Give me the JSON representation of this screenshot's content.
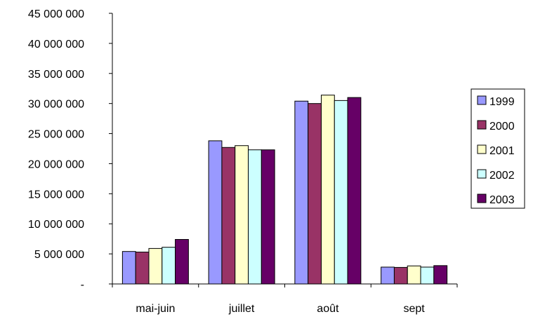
{
  "chart_data": {
    "type": "bar",
    "title": "",
    "xlabel": "",
    "ylabel": "",
    "categories": [
      "mai-juin",
      "juillet",
      "août",
      "sept"
    ],
    "ylim": [
      0,
      45000000
    ],
    "y_tick_values": [
      0,
      5000000,
      10000000,
      15000000,
      20000000,
      25000000,
      30000000,
      35000000,
      40000000,
      45000000
    ],
    "y_tick_labels": [
      "-",
      "5 000 000",
      "10 000 000",
      "15 000 000",
      "20 000 000",
      "25 000 000",
      "30 000 000",
      "35 000 000",
      "40 000 000",
      "45 000 000"
    ],
    "grid": false,
    "legend_position": "right",
    "series": [
      {
        "name": "1999",
        "color": "#9999ff",
        "values": [
          5400000,
          23800000,
          30400000,
          2800000
        ]
      },
      {
        "name": "2000",
        "color": "#993366",
        "values": [
          5300000,
          22700000,
          30000000,
          2750000
        ]
      },
      {
        "name": "2001",
        "color": "#ffffcc",
        "values": [
          5900000,
          23000000,
          31400000,
          3000000
        ]
      },
      {
        "name": "2002",
        "color": "#ccffff",
        "values": [
          6100000,
          22300000,
          30500000,
          2800000
        ]
      },
      {
        "name": "2003",
        "color": "#660066",
        "values": [
          7400000,
          22300000,
          31000000,
          3050000
        ]
      }
    ]
  }
}
